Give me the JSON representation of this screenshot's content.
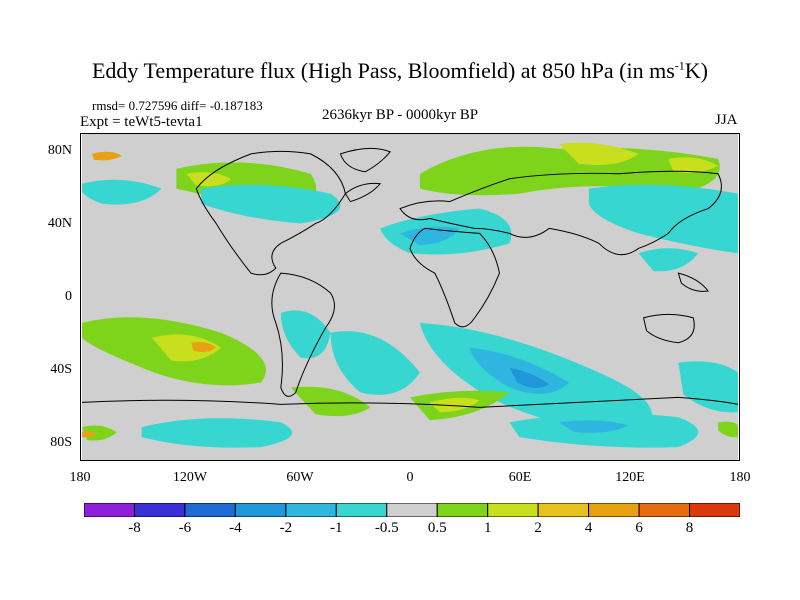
{
  "title_main": "Eddy Temperature flux (High Pass, Bloomfield) at 850 hPa (in ms",
  "title_sup": "-1",
  "title_end": "K)",
  "stats": "rmsd= 0.727596 diff= -0.187183",
  "expt": "Expt = teWt5-tevta1",
  "period": "2636kyr BP - 0000kyr BP",
  "season": "JJA",
  "lat_labels": [
    "80N",
    "40N",
    "0",
    "40S",
    "80S"
  ],
  "lon_labels": [
    "180",
    "120W",
    "60W",
    "0",
    "60E",
    "120E",
    "180"
  ],
  "colorbar": {
    "labels": [
      "-8",
      "-6",
      "-4",
      "-2",
      "-1",
      "-0.5",
      "0.5",
      "1",
      "2",
      "4",
      "6",
      "8"
    ],
    "colors": [
      "#8f1fd8",
      "#3a2ed6",
      "#1f6ad4",
      "#1f97d9",
      "#2fb6e0",
      "#37d6d0",
      "#cfcfcf",
      "#7ed31b",
      "#c7df1d",
      "#e7c21d",
      "#e9a114",
      "#e66c10",
      "#d9390b"
    ]
  },
  "map_colors": {
    "neutral": "#cfcfcf",
    "cyan": "#37d6d0",
    "lightblue": "#2fb6e0",
    "blue": "#1f97d9",
    "green": "#7ed31b",
    "yellowgreen": "#c7df1d",
    "yellow": "#e7c21d",
    "orange": "#e9a114",
    "coast": "#000000"
  }
}
